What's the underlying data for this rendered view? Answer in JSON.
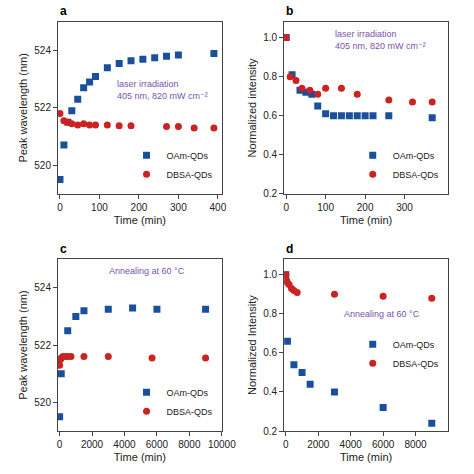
{
  "chart_data": [
    {
      "type": "scatter",
      "title": "a",
      "xlabel": "Time (min)",
      "ylabel": "Peak wavelength (nm)",
      "xlim": [
        -5,
        410
      ],
      "xticks": [
        0,
        100,
        200,
        300,
        400
      ],
      "ylim": [
        519.0,
        525.0
      ],
      "yticks": [
        520,
        522,
        524
      ],
      "grid": false,
      "legend": "lower right",
      "annotations": [
        {
          "text": "laser irradiation\n405 nm, 820 mW cm⁻²",
          "color": "#7b52ab"
        }
      ],
      "series": [
        {
          "name": "OAm-QDs",
          "color": "#1a4f9c",
          "marker": "square",
          "x": [
            0,
            10,
            20,
            30,
            45,
            60,
            75,
            90,
            120,
            150,
            180,
            210,
            240,
            270,
            300,
            390
          ],
          "values": [
            519.5,
            520.7,
            521.5,
            521.9,
            522.3,
            522.7,
            522.9,
            523.1,
            523.4,
            523.55,
            523.65,
            523.7,
            523.75,
            523.8,
            523.85,
            523.9
          ]
        },
        {
          "name": "DBSA-QDs",
          "color": "#cc2222",
          "marker": "circle",
          "x": [
            0,
            10,
            20,
            30,
            45,
            60,
            75,
            90,
            120,
            150,
            180,
            270,
            300,
            340,
            390
          ],
          "values": [
            521.8,
            521.55,
            521.5,
            521.45,
            521.4,
            521.45,
            521.4,
            521.4,
            521.4,
            521.38,
            521.38,
            521.35,
            521.35,
            521.3,
            521.3
          ]
        }
      ]
    },
    {
      "type": "scatter",
      "title": "b",
      "xlabel": "Time (min)",
      "ylabel": "Normalized intensity",
      "xlim": [
        -5,
        410
      ],
      "xticks": [
        0,
        100,
        200,
        300
      ],
      "ylim": [
        0.2,
        1.08
      ],
      "yticks": [
        0.2,
        0.4,
        0.6,
        0.8,
        {
          "value": 1.0,
          "label": "1.0"
        }
      ],
      "grid": false,
      "legend": "lower right",
      "annotations": [
        {
          "text": "laser irradiation\n405 nm, 820 mW cm⁻²",
          "color": "#7b52ab"
        }
      ],
      "series": [
        {
          "name": "OAm-QDs",
          "color": "#1a4f9c",
          "marker": "square",
          "x": [
            0,
            15,
            35,
            50,
            65,
            80,
            100,
            120,
            140,
            160,
            180,
            200,
            220,
            260,
            370
          ],
          "values": [
            1.0,
            0.81,
            0.73,
            0.72,
            0.71,
            0.65,
            0.61,
            0.6,
            0.6,
            0.6,
            0.6,
            0.6,
            0.6,
            0.6,
            0.59
          ]
        },
        {
          "name": "DBSA-QDs",
          "color": "#cc2222",
          "marker": "circle",
          "x": [
            0,
            10,
            25,
            40,
            60,
            80,
            100,
            140,
            180,
            260,
            320,
            370
          ],
          "values": [
            1.0,
            0.8,
            0.78,
            0.74,
            0.73,
            0.71,
            0.74,
            0.74,
            0.71,
            0.68,
            0.67,
            0.67
          ]
        }
      ]
    },
    {
      "type": "scatter",
      "title": "c",
      "xlabel": "Time (min)",
      "ylabel": "Peak wavelength (nm)",
      "xlim": [
        -100,
        10000
      ],
      "xticks": [
        0,
        2000,
        4000,
        6000,
        8000,
        10000
      ],
      "ylim": [
        519.0,
        525.0
      ],
      "yticks": [
        520,
        522,
        524
      ],
      "grid": false,
      "legend": "lower right",
      "annotations": [
        {
          "text": "Annealing at 60 °C",
          "color": "#7b52ab"
        }
      ],
      "series": [
        {
          "name": "OAm-QDs",
          "color": "#1a4f9c",
          "marker": "square",
          "x": [
            0,
            100,
            500,
            1000,
            1500,
            3000,
            4500,
            6000,
            9000
          ],
          "values": [
            519.5,
            521.0,
            522.5,
            523.0,
            523.2,
            523.25,
            523.3,
            523.25,
            523.25
          ]
        },
        {
          "name": "DBSA-QDs",
          "color": "#cc2222",
          "marker": "circle",
          "x": [
            0,
            50,
            100,
            200,
            350,
            500,
            700,
            1500,
            3000,
            5700,
            9000
          ],
          "values": [
            521.3,
            521.5,
            521.55,
            521.6,
            521.6,
            521.6,
            521.6,
            521.6,
            521.6,
            521.55,
            521.55
          ]
        }
      ]
    },
    {
      "type": "scatter",
      "title": "d",
      "xlabel": "Time (min)",
      "ylabel": "Normalized Intensity",
      "xlim": [
        -100,
        10000
      ],
      "xticks": [
        0,
        2000,
        4000,
        6000,
        8000
      ],
      "ylim": [
        0.2,
        1.08
      ],
      "yticks": [
        0.2,
        0.4,
        0.6,
        0.8,
        {
          "value": 1.0,
          "label": "1.0"
        }
      ],
      "grid": false,
      "legend": "center right",
      "annotations": [
        {
          "text": "Annealing at 60 °C",
          "color": "#7b52ab"
        }
      ],
      "series": [
        {
          "name": "OAm-QDs",
          "color": "#1a4f9c",
          "marker": "square",
          "x": [
            0,
            100,
            500,
            1000,
            1500,
            3000,
            6000,
            9000
          ],
          "values": [
            1.0,
            0.66,
            0.54,
            0.5,
            0.44,
            0.4,
            0.32,
            0.24
          ]
        },
        {
          "name": "DBSA-QDs",
          "color": "#cc2222",
          "marker": "circle",
          "x": [
            0,
            50,
            100,
            200,
            350,
            500,
            700,
            3000,
            6000,
            9000
          ],
          "values": [
            1.0,
            0.97,
            0.96,
            0.95,
            0.93,
            0.92,
            0.91,
            0.9,
            0.89,
            0.88
          ]
        }
      ]
    }
  ]
}
